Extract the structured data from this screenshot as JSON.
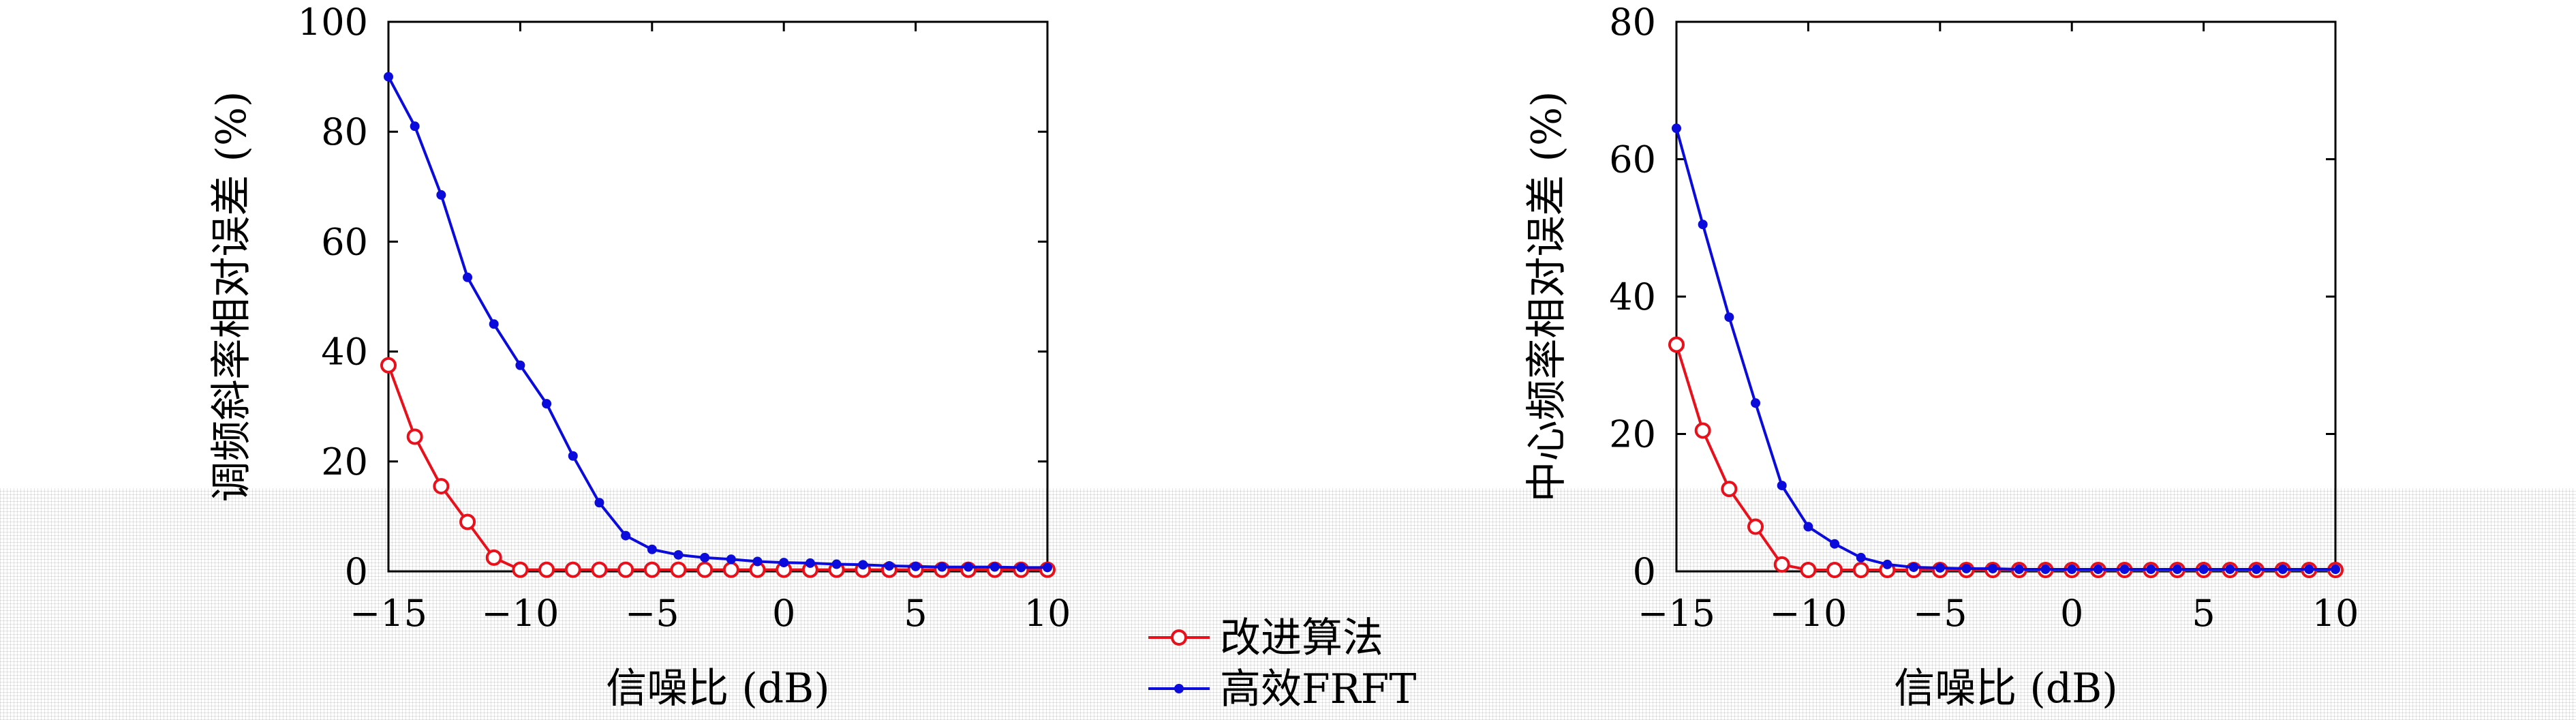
{
  "colors": {
    "improved": "#e8111b",
    "frft": "#0b0bdc"
  },
  "legend": {
    "placement": "between-charts-bottom",
    "entries": [
      {
        "label": "改进算法",
        "marker": "open-circle",
        "color": "#e8111b"
      },
      {
        "label": "高效FRFT",
        "marker": "filled-dot",
        "color": "#0b0bdc"
      }
    ]
  },
  "chart_data": [
    {
      "type": "line",
      "title": "",
      "xlabel": "信噪比 (dB)",
      "ylabel": "调频斜率相对误差 (%)",
      "xlim": [
        -15,
        10
      ],
      "ylim": [
        0,
        100
      ],
      "xticks": [
        -15,
        -10,
        -5,
        0,
        5,
        10
      ],
      "xtick_labels": [
        "−15",
        "−10",
        "−5",
        "0",
        "5",
        "10"
      ],
      "yticks": [
        0,
        20,
        40,
        60,
        80,
        100
      ],
      "grid": false,
      "x": [
        -15,
        -14,
        -13,
        -12,
        -11,
        -10,
        -9,
        -8,
        -7,
        -6,
        -5,
        -4,
        -3,
        -2,
        -1,
        0,
        1,
        2,
        3,
        4,
        5,
        6,
        7,
        8,
        9,
        10
      ],
      "series": [
        {
          "name": "改进算法",
          "marker": "open-circle",
          "color": "#e8111b",
          "values": [
            37.5,
            24.5,
            15.5,
            9.0,
            2.5,
            0.3,
            0.3,
            0.3,
            0.3,
            0.3,
            0.3,
            0.3,
            0.3,
            0.3,
            0.3,
            0.3,
            0.3,
            0.3,
            0.3,
            0.3,
            0.3,
            0.3,
            0.3,
            0.3,
            0.3,
            0.3
          ]
        },
        {
          "name": "高效FRFT",
          "marker": "filled-dot",
          "color": "#0b0bdc",
          "values": [
            90.0,
            81.0,
            68.5,
            53.5,
            45.0,
            37.5,
            30.5,
            21.0,
            12.5,
            6.5,
            4.0,
            3.0,
            2.5,
            2.2,
            1.8,
            1.6,
            1.5,
            1.3,
            1.2,
            1.0,
            0.9,
            0.8,
            0.8,
            0.8,
            0.7,
            0.7
          ]
        }
      ]
    },
    {
      "type": "line",
      "title": "",
      "xlabel": "信噪比 (dB)",
      "ylabel": "中心频率相对误差 (%)",
      "xlim": [
        -15,
        10
      ],
      "ylim": [
        0,
        80
      ],
      "xticks": [
        -15,
        -10,
        -5,
        0,
        5,
        10
      ],
      "xtick_labels": [
        "−15",
        "−10",
        "−5",
        "0",
        "5",
        "10"
      ],
      "yticks": [
        0,
        20,
        40,
        60,
        80
      ],
      "grid": false,
      "x": [
        -15,
        -14,
        -13,
        -12,
        -11,
        -10,
        -9,
        -8,
        -7,
        -6,
        -5,
        -4,
        -3,
        -2,
        -1,
        0,
        1,
        2,
        3,
        4,
        5,
        6,
        7,
        8,
        9,
        10
      ],
      "series": [
        {
          "name": "改进算法",
          "marker": "open-circle",
          "color": "#e8111b",
          "values": [
            33.0,
            20.5,
            12.0,
            6.5,
            1.0,
            0.2,
            0.2,
            0.2,
            0.2,
            0.2,
            0.2,
            0.2,
            0.2,
            0.2,
            0.2,
            0.2,
            0.2,
            0.2,
            0.2,
            0.2,
            0.2,
            0.2,
            0.2,
            0.2,
            0.2,
            0.2
          ]
        },
        {
          "name": "高效FRFT",
          "marker": "filled-dot",
          "color": "#0b0bdc",
          "values": [
            64.5,
            50.5,
            37.0,
            24.5,
            12.5,
            6.5,
            4.0,
            2.0,
            1.0,
            0.6,
            0.5,
            0.4,
            0.4,
            0.3,
            0.3,
            0.3,
            0.3,
            0.3,
            0.3,
            0.3,
            0.3,
            0.3,
            0.3,
            0.3,
            0.3,
            0.3
          ]
        }
      ]
    }
  ]
}
